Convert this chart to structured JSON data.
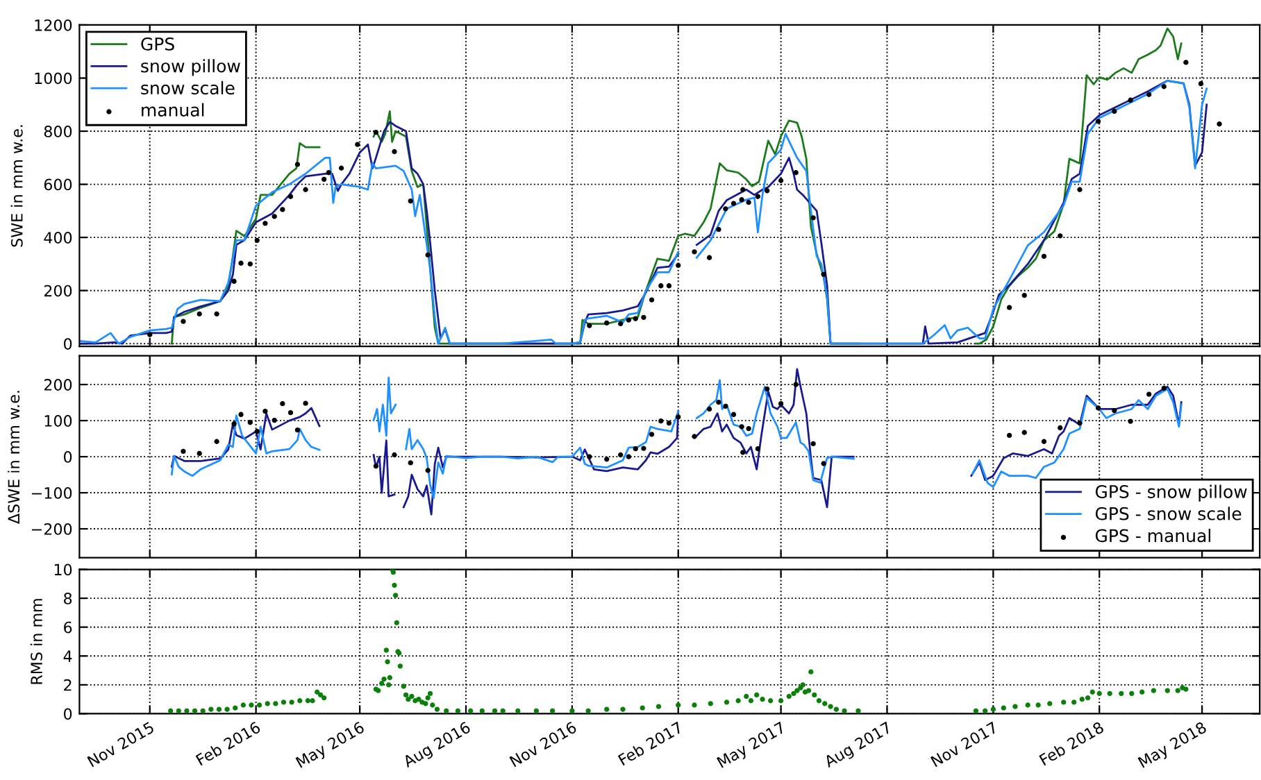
{
  "chart_data": [
    {
      "type": "line",
      "ylabel": "SWE in mm w.e.",
      "xlim": [
        "2015-09-01",
        "2018-06-20"
      ],
      "ylim": [
        -10,
        1200
      ],
      "yticks": [
        0,
        200,
        400,
        600,
        800,
        1000,
        1200
      ],
      "xticks": [
        {
          "value": "2015-11-01",
          "label": null
        },
        {
          "value": "2016-02-01",
          "label": null
        },
        {
          "value": "2016-05-01",
          "label": null
        },
        {
          "value": "2016-08-01",
          "label": null
        },
        {
          "value": "2016-11-01",
          "label": null
        },
        {
          "value": "2017-02-01",
          "label": null
        },
        {
          "value": "2017-05-01",
          "label": null
        },
        {
          "value": "2017-08-01",
          "label": null
        },
        {
          "value": "2017-11-01",
          "label": null
        },
        {
          "value": "2018-02-01",
          "label": null
        },
        {
          "value": "2018-05-01",
          "label": null
        }
      ],
      "grid": true,
      "legend": "top left",
      "tick_labels": "y",
      "series": [
        {
          "name": "GPS",
          "color": "#1b7b1b",
          "x": [
            "2015-11-20",
            "2015-11-22",
            "2015-12-01",
            "2015-12-15",
            "2016-01-01",
            "2016-01-08",
            "2016-01-12",
            "2016-01-15",
            "2016-01-22",
            "2016-02-01",
            "2016-02-05",
            "2016-02-15",
            "2016-03-01",
            "2016-03-07",
            "2016-03-10",
            "2016-03-15",
            "2016-03-27",
            "2016-04-05",
            "2016-05-13",
            "2016-05-15",
            "2016-05-20",
            "2016-05-23",
            "2016-05-27",
            "2016-05-29",
            "2016-06-01",
            "2016-06-10",
            "2016-06-15",
            "2016-06-20",
            "2016-06-25",
            "2016-07-01",
            "2016-07-05",
            "2016-07-08",
            "2016-08-01",
            "2016-09-01",
            "2016-10-01",
            "2016-11-08",
            "2016-11-10",
            "2016-11-15",
            "2016-12-01",
            "2016-12-15",
            "2016-12-28",
            "2017-01-04",
            "2017-01-14",
            "2017-01-24",
            "2017-02-01",
            "2017-02-07",
            "2017-02-15",
            "2017-02-23",
            "2017-03-01",
            "2017-03-09",
            "2017-03-15",
            "2017-03-25",
            "2017-04-01",
            "2017-04-06",
            "2017-04-12",
            "2017-04-20",
            "2017-04-26",
            "2017-05-01",
            "2017-05-08",
            "2017-05-15",
            "2017-05-19",
            "2017-05-23",
            "2017-05-27",
            "2017-06-01",
            "2017-06-07",
            "2017-06-10",
            "2017-06-13",
            "2017-07-07",
            "2017-07-10",
            "2017-10-17",
            "2017-10-20",
            "2017-10-26",
            "2017-11-01",
            "2017-11-08",
            "2017-11-15",
            "2017-11-22",
            "2017-12-01",
            "2017-12-08",
            "2017-12-15",
            "2017-12-24",
            "2018-01-01",
            "2018-01-06",
            "2018-01-15",
            "2018-01-21",
            "2018-01-27",
            "2018-02-01",
            "2018-02-08",
            "2018-02-15",
            "2018-02-22",
            "2018-03-01",
            "2018-03-07",
            "2018-03-15",
            "2018-03-22",
            "2018-03-26",
            "2018-04-01",
            "2018-04-06",
            "2018-04-10",
            "2018-04-13"
          ],
          "values": [
            0,
            100,
            110,
            135,
            160,
            215,
            330,
            425,
            405,
            470,
            560,
            560,
            640,
            660,
            755,
            740,
            740,
            null,
            780,
            800,
            760,
            790,
            875,
            760,
            800,
            780,
            650,
            590,
            600,
            280,
            60,
            0,
            0,
            0,
            0,
            0,
            90,
            75,
            75,
            90,
            100,
            200,
            320,
            312,
            406,
            414,
            406,
            457,
            508,
            679,
            653,
            644,
            619,
            593,
            610,
            764,
            713,
            781,
            840,
            832,
            780,
            696,
            440,
            338,
            252,
            167,
            0,
            0,
            null,
            0,
            0,
            15,
            65,
            167,
            218,
            252,
            286,
            320,
            389,
            423,
            525,
            696,
            679,
            1011,
            977,
            1003,
            994,
            1020,
            1037,
            1020,
            1071,
            1088,
            1105,
            1122,
            1187,
            1156,
            1071,
            1130
          ]
        },
        {
          "name": "snow pillow",
          "color": "#1a1a8f",
          "x": [
            "2015-09-01",
            "2015-09-15",
            "2015-10-01",
            "2015-10-08",
            "2015-10-15",
            "2015-11-01",
            "2015-11-15",
            "2015-11-20",
            "2015-11-22",
            "2015-12-01",
            "2015-12-15",
            "2016-01-01",
            "2016-01-08",
            "2016-01-12",
            "2016-01-15",
            "2016-01-22",
            "2016-02-01",
            "2016-02-15",
            "2016-03-01",
            "2016-03-08",
            "2016-03-15",
            "2016-04-01",
            "2016-04-07",
            "2016-04-12",
            "2016-04-15",
            "2016-04-22",
            "2016-05-01",
            "2016-05-08",
            "2016-05-12",
            "2016-05-15",
            "2016-05-22",
            "2016-05-27",
            "2016-06-01",
            "2016-06-10",
            "2016-06-15",
            "2016-06-20",
            "2016-06-25",
            "2016-06-28",
            "2016-07-01",
            "2016-07-05",
            "2016-07-10",
            "2016-07-14",
            "2016-07-18",
            "2016-08-01",
            "2016-09-01",
            "2016-10-01",
            "2016-11-01",
            "2016-11-08",
            "2016-11-12",
            "2016-11-15",
            "2016-12-01",
            "2016-12-15",
            "2016-12-28",
            "2017-01-04",
            "2017-01-14",
            "2017-01-24",
            "2017-02-01",
            "2017-02-05",
            "2017-02-17",
            "2017-03-01",
            "2017-03-08",
            "2017-03-15",
            "2017-04-01",
            "2017-04-08",
            "2017-04-15",
            "2017-04-20",
            "2017-05-01",
            "2017-05-08",
            "2017-05-12",
            "2017-05-15",
            "2017-05-20",
            "2017-06-01",
            "2017-06-05",
            "2017-06-10",
            "2017-06-13",
            "2017-08-01",
            "2017-09-01",
            "2017-09-03",
            "2017-09-06",
            "2017-10-01",
            "2017-10-25",
            "2017-11-01",
            "2017-11-06",
            "2017-11-15",
            "2017-12-01",
            "2017-12-15",
            "2018-01-01",
            "2018-01-08",
            "2018-01-15",
            "2018-01-22",
            "2018-02-01",
            "2018-02-15",
            "2018-03-01",
            "2018-03-15",
            "2018-04-01",
            "2018-04-15",
            "2018-04-20",
            "2018-04-25",
            "2018-05-01",
            "2018-05-05"
          ],
          "values": [
            0,
            0,
            5,
            0,
            30,
            40,
            40,
            45,
            100,
            120,
            140,
            160,
            200,
            260,
            372,
            390,
            457,
            490,
            560,
            600,
            630,
            640,
            640,
            575,
            600,
            640,
            720,
            750,
            660,
            700,
            800,
            835,
            820,
            800,
            660,
            640,
            600,
            500,
            380,
            200,
            20,
            55,
            0,
            0,
            0,
            0,
            0,
            5,
            80,
            110,
            115,
            125,
            141,
            193,
            286,
            290,
            338,
            null,
            372,
            410,
            500,
            540,
            580,
            560,
            580,
            590,
            640,
            700,
            640,
            580,
            560,
            500,
            380,
            220,
            0,
            0,
            0,
            65,
            0,
            5,
            40,
            120,
            184,
            220,
            300,
            390,
            530,
            620,
            640,
            820,
            860,
            890,
            920,
            950,
            990,
            980,
            900,
            670,
            720,
            900
          ]
        },
        {
          "name": "snow scale",
          "color": "#1e90ff",
          "x": [
            "2015-09-01",
            "2015-09-15",
            "2015-09-28",
            "2015-10-05",
            "2015-10-15",
            "2015-11-01",
            "2015-11-15",
            "2015-11-20",
            "2015-11-25",
            "2015-12-01",
            "2015-12-15",
            "2016-01-01",
            "2016-01-08",
            "2016-01-15",
            "2016-01-22",
            "2016-02-01",
            "2016-02-15",
            "2016-03-01",
            "2016-03-15",
            "2016-04-01",
            "2016-04-05",
            "2016-04-08",
            "2016-04-10",
            "2016-04-15",
            "2016-05-01",
            "2016-05-08",
            "2016-05-12",
            "2016-05-15",
            "2016-06-01",
            "2016-06-08",
            "2016-06-15",
            "2016-06-18",
            "2016-06-22",
            "2016-07-01",
            "2016-07-05",
            "2016-07-08",
            "2016-07-14",
            "2016-07-18",
            "2016-08-01",
            "2016-09-01",
            "2016-10-14",
            "2016-10-18",
            "2016-11-01",
            "2016-11-08",
            "2016-11-12",
            "2016-11-15",
            "2016-12-01",
            "2016-12-15",
            "2016-12-20",
            "2016-12-28",
            "2017-01-04",
            "2017-01-14",
            "2017-01-24",
            "2017-02-01",
            "2017-02-05",
            "2017-02-17",
            "2017-03-01",
            "2017-03-15",
            "2017-04-01",
            "2017-04-08",
            "2017-04-11",
            "2017-04-15",
            "2017-04-20",
            "2017-05-01",
            "2017-05-05",
            "2017-05-15",
            "2017-05-23",
            "2017-05-27",
            "2017-06-01",
            "2017-06-05",
            "2017-06-10",
            "2017-06-13",
            "2017-08-01",
            "2017-09-01",
            "2017-09-10",
            "2017-09-20",
            "2017-09-25",
            "2017-10-01",
            "2017-10-10",
            "2017-10-20",
            "2017-10-25",
            "2017-11-01",
            "2017-11-15",
            "2017-12-01",
            "2017-12-15",
            "2018-01-01",
            "2018-01-08",
            "2018-01-15",
            "2018-01-22",
            "2018-02-01",
            "2018-02-15",
            "2018-03-01",
            "2018-03-15",
            "2018-04-01",
            "2018-04-15",
            "2018-04-20",
            "2018-04-25",
            "2018-05-01",
            "2018-05-05"
          ],
          "values": [
            10,
            5,
            40,
            0,
            25,
            50,
            55,
            60,
            130,
            150,
            165,
            160,
            230,
            389,
            390,
            520,
            570,
            600,
            640,
            700,
            700,
            530,
            590,
            600,
            590,
            580,
            680,
            660,
            670,
            650,
            580,
            480,
            560,
            280,
            100,
            0,
            60,
            0,
            0,
            0,
            15,
            0,
            0,
            5,
            90,
            95,
            105,
            80,
            110,
            116,
            200,
            269,
            269,
            346,
            null,
            324,
            389,
            508,
            542,
            550,
            419,
            560,
            680,
            730,
            790,
            700,
            650,
            500,
            330,
            300,
            180,
            0,
            0,
            0,
            30,
            70,
            20,
            50,
            60,
            20,
            20,
            130,
            240,
            370,
            420,
            520,
            610,
            610,
            790,
            850,
            880,
            910,
            940,
            990,
            980,
            890,
            660,
            900,
            960
          ]
        },
        {
          "name": "manual",
          "type": "scatter",
          "marker": "circle",
          "color": "#000000",
          "x": [
            "2015-11-01",
            "2015-11-30",
            "2015-12-14",
            "2015-12-29",
            "2016-01-13",
            "2016-01-19",
            "2016-01-27",
            "2016-02-02",
            "2016-02-09",
            "2016-02-17",
            "2016-02-24",
            "2016-03-02",
            "2016-03-08",
            "2016-03-15",
            "2016-03-31",
            "2016-04-04",
            "2016-04-15",
            "2016-04-29",
            "2016-05-15",
            "2016-05-31",
            "2016-06-14",
            "2016-06-29",
            "2016-11-16",
            "2016-12-01",
            "2016-12-13",
            "2016-12-20",
            "2016-12-26",
            "2017-01-02",
            "2017-01-09",
            "2017-01-17",
            "2017-01-24",
            "2017-02-01",
            "2017-02-15",
            "2017-02-28",
            "2017-03-08",
            "2017-03-14",
            "2017-03-21",
            "2017-03-28",
            "2017-03-29",
            "2017-04-03",
            "2017-04-11",
            "2017-04-19",
            "2017-05-01",
            "2017-05-14",
            "2017-05-29",
            "2017-06-07",
            "2017-11-15",
            "2017-11-28",
            "2017-12-15",
            "2017-12-29",
            "2018-01-15",
            "2018-01-31",
            "2018-02-14",
            "2018-02-28",
            "2018-03-16",
            "2018-03-29",
            "2018-04-17",
            "2018-04-30",
            "2018-05-16"
          ],
          "values": [
            34,
            84,
            112,
            112,
            235,
            303,
            300,
            389,
            453,
            479,
            505,
            554,
            675,
            580,
            619,
            644,
            661,
            750,
            796,
            723,
            537,
            334,
            68,
            78,
            75,
            89,
            94,
            99,
            165,
            218,
            218,
            295,
            346,
            324,
            430,
            508,
            528,
            542,
            580,
            532,
            554,
            576,
            614,
            644,
            474,
            261,
            136,
            182,
            329,
            406,
            580,
            837,
            875,
            917,
            938,
            968,
            1059,
            979,
            827
          ]
        }
      ]
    },
    {
      "type": "line",
      "ylabel": "ΔSWE in mm w.e.",
      "xlim": [
        "2015-09-01",
        "2018-06-20"
      ],
      "ylim": [
        -280,
        280
      ],
      "yticks": [
        {
          "value": -200,
          "label": "−200"
        },
        {
          "value": -100,
          "label": "−100"
        },
        0,
        100,
        200
      ],
      "xticks": [
        {
          "value": "2015-11-01",
          "label": null
        },
        {
          "value": "2016-02-01",
          "label": null
        },
        {
          "value": "2016-05-01",
          "label": null
        },
        {
          "value": "2016-08-01",
          "label": null
        },
        {
          "value": "2016-11-01",
          "label": null
        },
        {
          "value": "2017-02-01",
          "label": null
        },
        {
          "value": "2017-05-01",
          "label": null
        },
        {
          "value": "2017-08-01",
          "label": null
        },
        {
          "value": "2017-11-01",
          "label": null
        },
        {
          "value": "2018-02-01",
          "label": null
        },
        {
          "value": "2018-05-01",
          "label": null
        }
      ],
      "grid": true,
      "legend": "bottom right",
      "tick_labels": "y",
      "series": [
        {
          "name": "GPS - snow pillow",
          "color": "#1a1a8f",
          "x": [
            "2015-11-20",
            "2015-11-22",
            "2015-12-01",
            "2015-12-15",
            "2016-01-01",
            "2016-01-08",
            "2016-01-12",
            "2016-01-15",
            "2016-01-22",
            "2016-02-01",
            "2016-02-05",
            "2016-02-10",
            "2016-02-15",
            "2016-03-01",
            "2016-03-10",
            "2016-03-15",
            "2016-03-20",
            "2016-03-27",
            "2016-04-05",
            "2016-05-13",
            "2016-05-15",
            "2016-05-18",
            "2016-05-20",
            "2016-05-24",
            "2016-05-26",
            "2016-05-31",
            "2016-06-04",
            "2016-06-08",
            "2016-06-12",
            "2016-06-15",
            "2016-06-20",
            "2016-06-25",
            "2016-06-28",
            "2016-07-02",
            "2016-07-05",
            "2016-07-08",
            "2016-07-12",
            "2016-07-15",
            "2016-08-01",
            "2016-09-01",
            "2016-10-01",
            "2016-11-01",
            "2016-11-08",
            "2016-11-12",
            "2016-11-20",
            "2016-12-01",
            "2016-12-15",
            "2016-12-28",
            "2017-01-04",
            "2017-01-08",
            "2017-01-14",
            "2017-01-24",
            "2017-01-31",
            "2017-02-01",
            "2017-02-05",
            "2017-02-17",
            "2017-02-23",
            "2017-03-01",
            "2017-03-07",
            "2017-03-11",
            "2017-03-15",
            "2017-03-21",
            "2017-03-27",
            "2017-04-01",
            "2017-04-05",
            "2017-04-10",
            "2017-04-14",
            "2017-04-20",
            "2017-04-24",
            "2017-04-28",
            "2017-05-01",
            "2017-05-08",
            "2017-05-12",
            "2017-05-15",
            "2017-05-18",
            "2017-05-23",
            "2017-05-27",
            "2017-05-29",
            "2017-06-05",
            "2017-06-10",
            "2017-06-14",
            "2017-07-03",
            "2017-07-06",
            "2017-10-13",
            "2017-10-20",
            "2017-10-25",
            "2017-11-01",
            "2017-11-10",
            "2017-11-18",
            "2017-12-01",
            "2017-12-15",
            "2017-12-22",
            "2017-12-28",
            "2018-01-01",
            "2018-01-06",
            "2018-01-15",
            "2018-01-21",
            "2018-02-01",
            "2018-02-15",
            "2018-03-01",
            "2018-03-15",
            "2018-03-22",
            "2018-04-01",
            "2018-04-06",
            "2018-04-11",
            "2018-04-13"
          ],
          "values": [
            -28,
            2,
            -12,
            -12,
            -5,
            20,
            90,
            60,
            50,
            70,
            20,
            120,
            75,
            100,
            110,
            120,
            135,
            85,
            null,
            5,
            -30,
            0,
            -100,
            45,
            -110,
            -105,
            null,
            -140,
            -110,
            -50,
            -90,
            -110,
            -80,
            -160,
            -20,
            25,
            -30,
            0,
            0,
            0,
            -2,
            0,
            -10,
            20,
            -35,
            -40,
            -30,
            -35,
            -10,
            12,
            8,
            27,
            52,
            126,
            null,
            58,
            77,
            83,
            120,
            70,
            89,
            52,
            39,
            9,
            27,
            -35,
            58,
            181,
            138,
            132,
            144,
            120,
            144,
            243,
            194,
            120,
            -4,
            -59,
            -65,
            -140,
            0,
            0,
            null,
            -53,
            -16,
            -65,
            -53,
            -4,
            9,
            2,
            21,
            9,
            58,
            70,
            107,
            89,
            169,
            132,
            132,
            144,
            144,
            175,
            194,
            169,
            89,
            151
          ]
        },
        {
          "name": "GPS - snow scale",
          "color": "#1e90ff",
          "x": [
            "2015-11-20",
            "2015-11-22",
            "2015-11-26",
            "2015-12-01",
            "2015-12-08",
            "2015-12-15",
            "2016-01-01",
            "2016-01-08",
            "2016-01-12",
            "2016-01-15",
            "2016-01-20",
            "2016-02-01",
            "2016-02-05",
            "2016-02-10",
            "2016-02-15",
            "2016-03-01",
            "2016-03-08",
            "2016-03-10",
            "2016-03-15",
            "2016-03-20",
            "2016-03-27",
            "2016-04-05",
            "2016-05-13",
            "2016-05-16",
            "2016-05-18",
            "2016-05-21",
            "2016-05-24",
            "2016-05-26",
            "2016-05-28",
            "2016-06-01",
            "2016-06-04",
            "2016-06-10",
            "2016-06-13",
            "2016-06-15",
            "2016-06-20",
            "2016-06-25",
            "2016-06-28",
            "2016-07-01",
            "2016-07-04",
            "2016-07-08",
            "2016-07-12",
            "2016-07-15",
            "2016-08-01",
            "2016-08-15",
            "2016-09-01",
            "2016-09-15",
            "2016-10-01",
            "2016-10-15",
            "2016-10-20",
            "2016-11-01",
            "2016-11-08",
            "2016-11-12",
            "2016-11-15",
            "2016-12-01",
            "2016-12-15",
            "2016-12-20",
            "2016-12-28",
            "2017-01-04",
            "2017-01-08",
            "2017-01-14",
            "2017-01-26",
            "2017-02-01",
            "2017-02-05",
            "2017-02-17",
            "2017-02-23",
            "2017-03-01",
            "2017-03-06",
            "2017-03-09",
            "2017-03-11",
            "2017-03-15",
            "2017-03-21",
            "2017-03-27",
            "2017-04-01",
            "2017-04-06",
            "2017-04-10",
            "2017-04-17",
            "2017-04-22",
            "2017-04-28",
            "2017-05-01",
            "2017-05-06",
            "2017-05-14",
            "2017-05-18",
            "2017-05-21",
            "2017-05-25",
            "2017-05-29",
            "2017-06-04",
            "2017-06-10",
            "2017-06-14",
            "2017-07-03",
            "2017-07-06",
            "2017-10-14",
            "2017-10-20",
            "2017-10-27",
            "2017-11-01",
            "2017-11-08",
            "2017-11-15",
            "2017-12-01",
            "2017-12-08",
            "2017-12-15",
            "2017-12-24",
            "2018-01-01",
            "2018-01-06",
            "2018-01-15",
            "2018-01-21",
            "2018-02-01",
            "2018-02-07",
            "2018-02-15",
            "2018-03-01",
            "2018-03-07",
            "2018-03-15",
            "2018-03-22",
            "2018-04-01",
            "2018-04-06",
            "2018-04-11",
            "2018-04-13"
          ],
          "values": [
            -49,
            2,
            -28,
            -41,
            -53,
            -35,
            -10,
            33,
            27,
            114,
            58,
            9,
            83,
            9,
            15,
            21,
            46,
            77,
            46,
            27,
            19,
            null,
            101,
            132,
            70,
            144,
            58,
            219,
            120,
            144,
            null,
            21,
            77,
            21,
            46,
            21,
            -4,
            -78,
            -115,
            -16,
            -47,
            2,
            -4,
            0,
            0,
            -5,
            0,
            -15,
            0,
            0,
            25,
            -20,
            -25,
            -30,
            -10,
            25,
            27,
            40,
            83,
            77,
            70,
            126,
            null,
            107,
            120,
            144,
            157,
            212,
            132,
            144,
            89,
            83,
            58,
            64,
            120,
            194,
            120,
            83,
            52,
            52,
            95,
            39,
            33,
            15,
            -65,
            -72,
            -4,
            0,
            -6,
            null,
            -47,
            -10,
            -72,
            -84,
            -41,
            -53,
            -53,
            -59,
            -28,
            -16,
            21,
            64,
            77,
            163,
            132,
            107,
            120,
            132,
            157,
            132,
            169,
            188,
            151,
            83,
            144
          ]
        },
        {
          "name": "GPS - manual",
          "type": "scatter",
          "marker": "circle",
          "color": "#000000",
          "x": [
            "2015-11-30",
            "2015-12-14",
            "2015-12-29",
            "2016-01-13",
            "2016-01-19",
            "2016-01-27",
            "2016-02-02",
            "2016-02-09",
            "2016-02-17",
            "2016-02-24",
            "2016-03-02",
            "2016-03-08",
            "2016-03-15",
            "2016-05-15",
            "2016-05-31",
            "2016-06-14",
            "2016-06-29",
            "2016-11-16",
            "2016-12-01",
            "2016-12-13",
            "2016-12-20",
            "2016-12-26",
            "2017-01-02",
            "2017-01-09",
            "2017-01-17",
            "2017-01-24",
            "2017-02-01",
            "2017-02-15",
            "2017-02-28",
            "2017-03-08",
            "2017-03-14",
            "2017-03-21",
            "2017-03-28",
            "2017-03-29",
            "2017-04-03",
            "2017-04-11",
            "2017-04-19",
            "2017-05-01",
            "2017-05-14",
            "2017-05-29",
            "2017-06-07",
            "2017-11-15",
            "2017-11-28",
            "2017-12-15",
            "2017-12-29",
            "2018-01-15",
            "2018-01-31",
            "2018-02-14",
            "2018-02-28",
            "2018-03-16",
            "2018-03-29"
          ],
          "values": [
            15,
            9,
            42,
            91,
            117,
            95,
            70,
            126,
            101,
            147,
            122,
            74,
            148,
            -26,
            5,
            -17,
            -38,
            0,
            -7,
            5,
            0,
            22,
            23,
            62,
            99,
            93,
            110,
            56,
            132,
            151,
            140,
            117,
            83,
            12,
            78,
            22,
            188,
            147,
            200,
            36,
            -19,
            59,
            67,
            42,
            80,
            93,
            135,
            128,
            98,
            173,
            190
          ]
        }
      ]
    },
    {
      "type": "scatter",
      "ylabel": "RMS in mm",
      "xlim": [
        "2015-09-01",
        "2018-06-20"
      ],
      "ylim": [
        0,
        10
      ],
      "yticks": [
        0,
        2,
        4,
        6,
        8,
        10
      ],
      "marker": "circle",
      "xticks": [
        {
          "value": "2015-11-01",
          "label": "Nov 2015"
        },
        {
          "value": "2016-02-01",
          "label": "Feb 2016"
        },
        {
          "value": "2016-05-01",
          "label": "May 2016"
        },
        {
          "value": "2016-08-01",
          "label": "Aug 2016"
        },
        {
          "value": "2016-11-01",
          "label": "Nov 2016"
        },
        {
          "value": "2017-02-01",
          "label": "Feb 2017"
        },
        {
          "value": "2017-05-01",
          "label": "May 2017"
        },
        {
          "value": "2017-08-01",
          "label": "Aug 2017"
        },
        {
          "value": "2017-11-01",
          "label": "Nov 2017"
        },
        {
          "value": "2018-02-01",
          "label": "Feb 2018"
        },
        {
          "value": "2018-05-01",
          "label": "May 2018"
        }
      ],
      "grid": true,
      "series": [
        {
          "color": "#0a7f0a",
          "x": [
            "2015-11-19",
            "2015-11-26",
            "2015-12-03",
            "2015-12-10",
            "2015-12-17",
            "2015-12-24",
            "2015-12-31",
            "2016-01-07",
            "2016-01-14",
            "2016-01-21",
            "2016-01-28",
            "2016-02-04",
            "2016-02-11",
            "2016-02-18",
            "2016-02-25",
            "2016-03-03",
            "2016-03-10",
            "2016-03-17",
            "2016-03-21",
            "2016-03-25",
            "2016-03-28",
            "2016-03-31",
            "2016-05-15",
            "2016-05-17",
            "2016-05-20",
            "2016-05-22",
            "2016-05-24",
            "2016-05-25",
            "2016-05-26",
            "2016-05-27",
            "2016-05-29",
            "2016-05-30",
            "2016-05-31",
            "2016-06-01",
            "2016-06-02",
            "2016-06-03",
            "2016-06-04",
            "2016-06-05",
            "2016-06-08",
            "2016-06-10",
            "2016-06-12",
            "2016-06-15",
            "2016-06-18",
            "2016-06-21",
            "2016-06-24",
            "2016-06-27",
            "2016-06-29",
            "2016-07-01",
            "2016-07-03",
            "2016-07-07",
            "2016-07-15",
            "2016-07-25",
            "2016-08-05",
            "2016-08-15",
            "2016-08-26",
            "2016-09-02",
            "2016-09-15",
            "2016-10-01",
            "2016-10-15",
            "2016-11-01",
            "2016-11-15",
            "2016-12-01",
            "2016-12-15",
            "2017-01-01",
            "2017-01-15",
            "2017-02-01",
            "2017-02-15",
            "2017-03-01",
            "2017-03-15",
            "2017-03-25",
            "2017-04-01",
            "2017-04-05",
            "2017-04-10",
            "2017-04-15",
            "2017-04-22",
            "2017-05-01",
            "2017-05-08",
            "2017-05-12",
            "2017-05-15",
            "2017-05-18",
            "2017-05-20",
            "2017-05-22",
            "2017-05-25",
            "2017-05-27",
            "2017-05-30",
            "2017-06-03",
            "2017-06-08",
            "2017-06-13",
            "2017-06-18",
            "2017-06-25",
            "2017-07-07",
            "2017-10-17",
            "2017-10-25",
            "2017-11-01",
            "2017-11-10",
            "2017-11-20",
            "2017-12-01",
            "2017-12-10",
            "2017-12-20",
            "2018-01-01",
            "2018-01-10",
            "2018-01-17",
            "2018-01-22",
            "2018-01-26",
            "2018-02-01",
            "2018-02-10",
            "2018-02-20",
            "2018-03-01",
            "2018-03-10",
            "2018-03-20",
            "2018-04-01",
            "2018-04-10",
            "2018-04-14",
            "2018-04-17"
          ],
          "values": [
            0.2,
            0.2,
            0.2,
            0.2,
            0.2,
            0.3,
            0.3,
            0.3,
            0.4,
            0.6,
            0.6,
            0.6,
            0.7,
            0.7,
            0.8,
            0.8,
            0.9,
            0.9,
            0.9,
            1.5,
            1.3,
            1.1,
            1.7,
            1.6,
            2.1,
            2.4,
            4.4,
            3.6,
            2.0,
            2.5,
            10.0,
            9.8,
            8.9,
            8.2,
            6.3,
            4.3,
            4.2,
            3.3,
            1.9,
            1.3,
            1.0,
            1.2,
            0.9,
            1.0,
            0.8,
            0.7,
            1.1,
            1.4,
            0.6,
            0.3,
            0.2,
            0.2,
            0.2,
            0.2,
            0.2,
            0.2,
            0.2,
            0.2,
            0.2,
            0.2,
            0.2,
            0.3,
            0.3,
            0.4,
            0.5,
            0.6,
            0.6,
            0.7,
            0.8,
            0.9,
            1.2,
            0.9,
            1.3,
            1.0,
            0.9,
            0.9,
            1.2,
            1.4,
            1.6,
            1.8,
            2.0,
            1.5,
            1.6,
            2.9,
            1.3,
            0.9,
            0.7,
            0.5,
            0.3,
            0.2,
            0.2,
            0.2,
            0.2,
            0.3,
            0.4,
            0.5,
            0.6,
            0.6,
            0.7,
            0.8,
            0.8,
            1.0,
            1.1,
            1.5,
            1.4,
            1.4,
            1.4,
            1.4,
            1.5,
            1.6,
            1.6,
            1.6,
            1.8,
            1.7
          ]
        }
      ]
    }
  ]
}
